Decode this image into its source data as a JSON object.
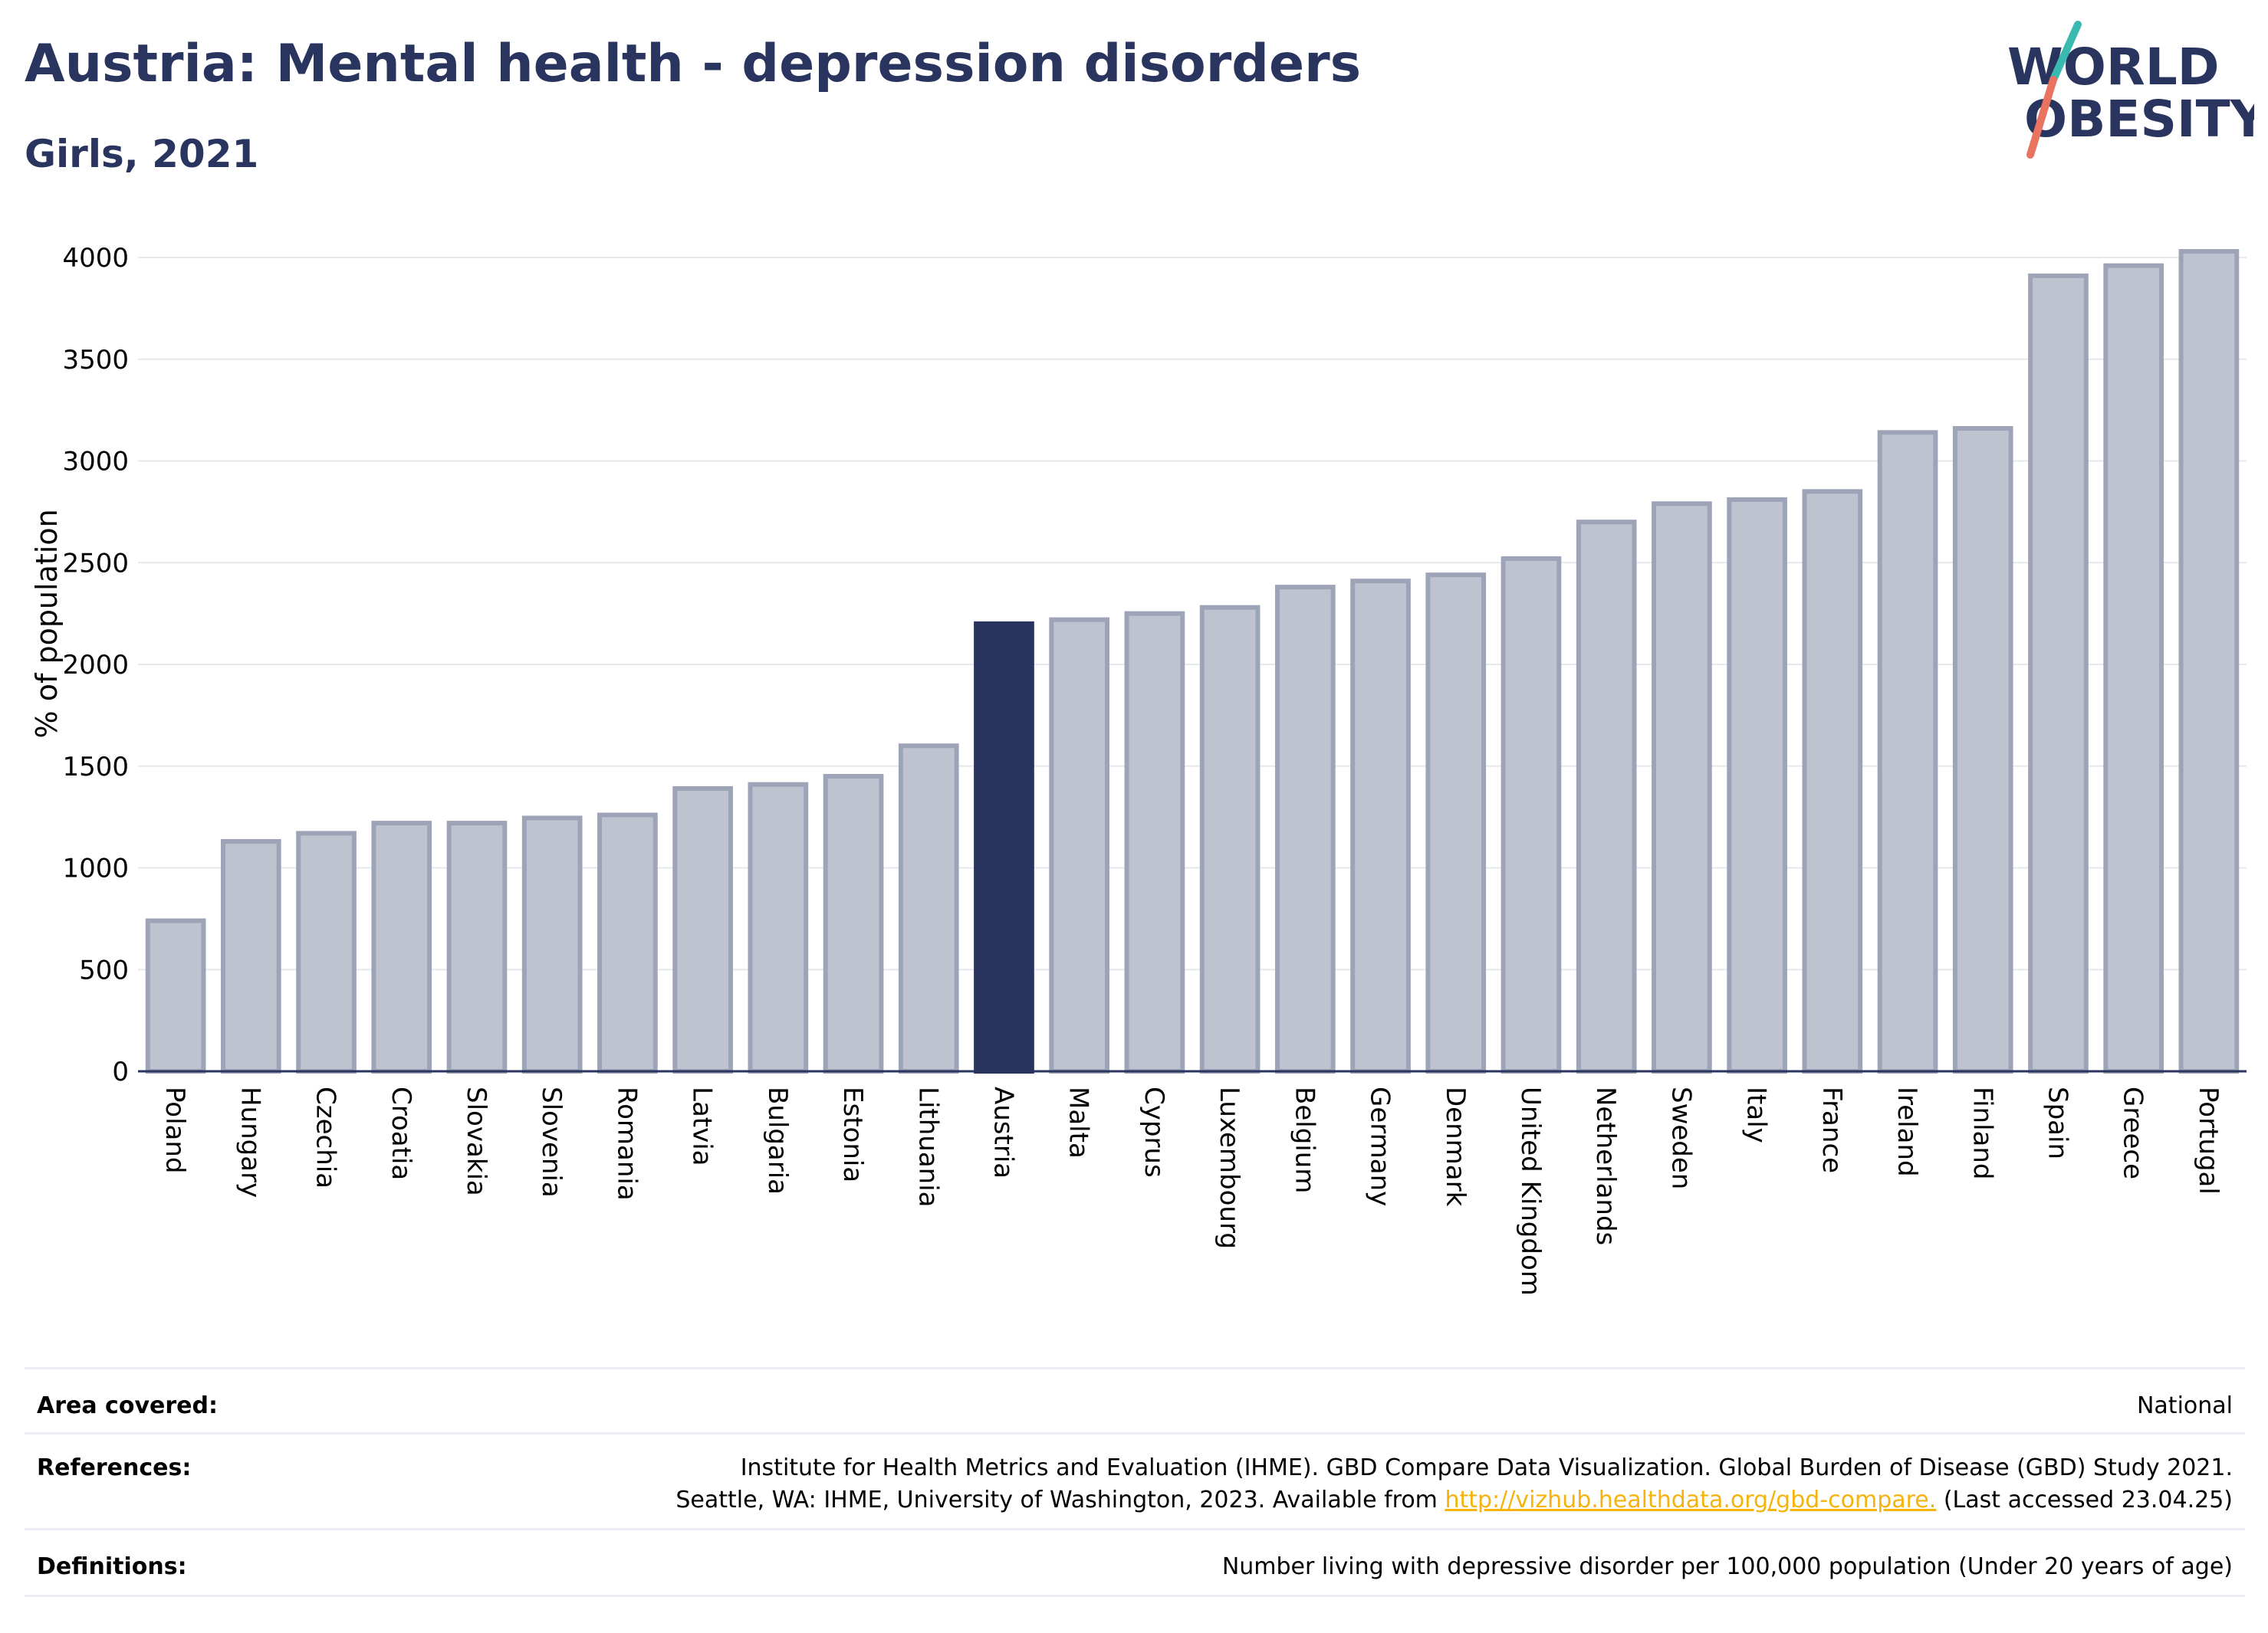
{
  "title": "Austria: Mental health - depression disorders",
  "subtitle": "Girls, 2021",
  "logo": {
    "line1": "WORLD",
    "line2": "OBESITY"
  },
  "chart_data": {
    "type": "bar",
    "ylabel": "% of population",
    "ylim": [
      0,
      4000
    ],
    "yticks": [
      0,
      500,
      1000,
      1500,
      2000,
      2500,
      3000,
      3500,
      4000
    ],
    "grid": true,
    "highlight": "Austria",
    "colors": {
      "bar": "#bfc3d0",
      "bar_edge": "#9ea4b8",
      "highlight": "#29345e"
    },
    "categories": [
      "Poland",
      "Hungary",
      "Czechia",
      "Croatia",
      "Slovakia",
      "Slovenia",
      "Romania",
      "Latvia",
      "Bulgaria",
      "Estonia",
      "Lithuania",
      "Austria",
      "Malta",
      "Cyprus",
      "Luxembourg",
      "Belgium",
      "Germany",
      "Denmark",
      "United Kingdom",
      "Netherlands",
      "Sweden",
      "Italy",
      "France",
      "Ireland",
      "Finland",
      "Spain",
      "Greece",
      "Portugal"
    ],
    "values": [
      740,
      1130,
      1170,
      1220,
      1220,
      1245,
      1260,
      1390,
      1410,
      1450,
      1600,
      2200,
      2220,
      2250,
      2280,
      2380,
      2410,
      2440,
      2520,
      2700,
      2790,
      2810,
      2850,
      3140,
      3160,
      3910,
      3960,
      4030
    ]
  },
  "info": {
    "area": {
      "label": "Area covered:",
      "value": "National"
    },
    "references": {
      "label": "References:",
      "line1": "Institute for Health Metrics and Evaluation (IHME). GBD Compare Data Visualization. Global Burden of Disease (GBD) Study 2021.",
      "line2_pre": "Seattle, WA: IHME, University of Washington, 2023. Available from ",
      "link": "http://vizhub.healthdata.org/gbd-compare.",
      "line2_post": " (Last accessed 23.04.25)"
    },
    "definitions": {
      "label": "Definitions:",
      "value": "Number living with depressive disorder per 100,000 population (Under 20 years of age)"
    }
  }
}
